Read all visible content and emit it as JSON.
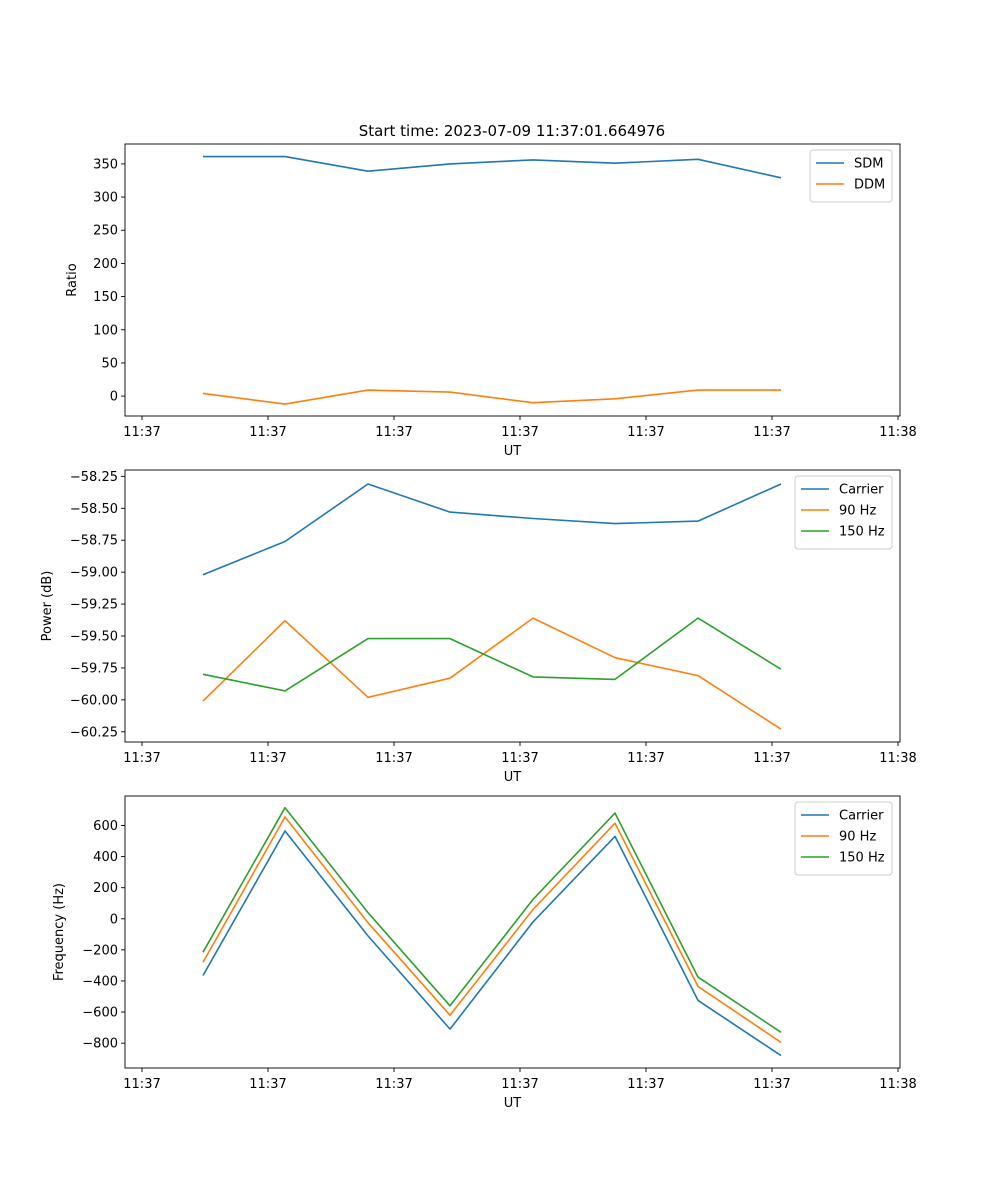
{
  "figure_title": "Start time: 2023-07-09 11:37:01.664976",
  "chart_data": [
    {
      "type": "line",
      "xlabel": "UT",
      "ylabel": "Ratio",
      "x_ticks": [
        "11:37",
        "11:37",
        "11:37",
        "11:37",
        "11:37",
        "11:37",
        "11:38"
      ],
      "ylim": [
        -30,
        380
      ],
      "y_ticks": [
        0,
        50,
        100,
        150,
        200,
        250,
        300,
        350
      ],
      "legend_position": "top-right",
      "series": [
        {
          "name": "SDM",
          "color": "#1f77b4",
          "values": [
            361,
            361,
            339,
            350,
            356,
            351,
            357,
            329
          ]
        },
        {
          "name": "DDM",
          "color": "#ff7f0e",
          "values": [
            4,
            -12,
            9,
            6,
            -10,
            -4,
            9,
            9
          ]
        }
      ]
    },
    {
      "type": "line",
      "xlabel": "UT",
      "ylabel": "Power (dB)",
      "x_ticks": [
        "11:37",
        "11:37",
        "11:37",
        "11:37",
        "11:37",
        "11:37",
        "11:38"
      ],
      "ylim": [
        -60.33,
        -58.2
      ],
      "y_ticks": [
        -60.25,
        -60.0,
        -59.75,
        -59.5,
        -59.25,
        -59.0,
        -58.75,
        -58.5,
        -58.25
      ],
      "y_tick_labels": [
        "−60.25",
        "−60.00",
        "−59.75",
        "−59.50",
        "−59.25",
        "−59.00",
        "−58.75",
        "−58.50",
        "−58.25"
      ],
      "legend_position": "top-right",
      "series": [
        {
          "name": "Carrier",
          "color": "#1f77b4",
          "values": [
            -59.02,
            -58.76,
            -58.31,
            -58.53,
            -58.58,
            -58.62,
            -58.6,
            -58.31
          ]
        },
        {
          "name": "90 Hz",
          "color": "#ff7f0e",
          "values": [
            -60.01,
            -59.38,
            -59.98,
            -59.83,
            -59.36,
            -59.67,
            -59.81,
            -60.23
          ]
        },
        {
          "name": "150 Hz",
          "color": "#2ca02c",
          "values": [
            -59.8,
            -59.93,
            -59.52,
            -59.52,
            -59.82,
            -59.84,
            -59.36,
            -59.76
          ]
        }
      ]
    },
    {
      "type": "line",
      "xlabel": "UT",
      "ylabel": "Frequency (Hz)",
      "x_ticks": [
        "11:37",
        "11:37",
        "11:37",
        "11:37",
        "11:37",
        "11:37",
        "11:38"
      ],
      "ylim": [
        -960,
        790
      ],
      "y_ticks": [
        -800,
        -600,
        -400,
        -200,
        0,
        200,
        400,
        600
      ],
      "y_tick_labels": [
        "−800",
        "−600",
        "−400",
        "−200",
        "0",
        "200",
        "400",
        "600"
      ],
      "legend_position": "top-right",
      "series": [
        {
          "name": "Carrier",
          "color": "#1f77b4",
          "values": [
            -365,
            565,
            -110,
            -710,
            -20,
            530,
            -525,
            -880
          ]
        },
        {
          "name": "90 Hz",
          "color": "#ff7f0e",
          "values": [
            -280,
            655,
            -25,
            -620,
            60,
            615,
            -435,
            -795
          ]
        },
        {
          "name": "150 Hz",
          "color": "#2ca02c",
          "values": [
            -215,
            715,
            40,
            -560,
            125,
            680,
            -375,
            -730
          ]
        }
      ]
    }
  ]
}
